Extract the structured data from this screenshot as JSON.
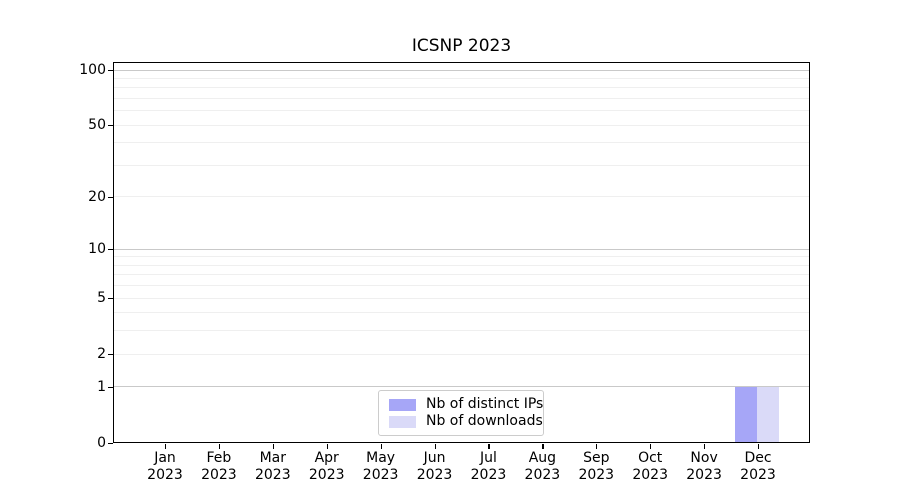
{
  "chart_data": {
    "type": "bar",
    "title": "ICSNP 2023",
    "x_axis": {
      "categories": [
        "Jan",
        "Feb",
        "Mar",
        "Apr",
        "May",
        "Jun",
        "Jul",
        "Aug",
        "Sep",
        "Oct",
        "Nov",
        "Dec"
      ],
      "year_label": "2023"
    },
    "y_axis": {
      "scale": "log1p",
      "tick_labels": [
        "0",
        "1",
        "2",
        "5",
        "10",
        "20",
        "50",
        "100"
      ],
      "tick_values": [
        0,
        1,
        2,
        5,
        10,
        20,
        50,
        100
      ],
      "major_gridlines": [
        1,
        10,
        100
      ],
      "minor_gridlines": [
        2,
        3,
        4,
        5,
        6,
        7,
        8,
        9,
        20,
        30,
        40,
        50,
        60,
        70,
        80,
        90
      ],
      "ylim": [
        0,
        110
      ],
      "grid": true
    },
    "series": [
      {
        "name": "Nb of distinct IPs",
        "color": "#a6a6f7",
        "values": [
          0,
          0,
          0,
          0,
          0,
          0,
          0,
          0,
          0,
          0,
          0,
          1
        ]
      },
      {
        "name": "Nb of downloads",
        "color": "#dadaf8",
        "values": [
          0,
          0,
          0,
          0,
          0,
          0,
          0,
          0,
          0,
          0,
          0,
          1
        ]
      }
    ],
    "legend": {
      "position": "bottom-center",
      "labels": [
        "Nb of distinct IPs",
        "Nb of downloads"
      ]
    }
  },
  "colors": {
    "spine": "#000000",
    "grid_major": "#c9c9c9",
    "grid_minor": "#efefef",
    "legend_border": "#cccccc",
    "background": "#ffffff"
  }
}
